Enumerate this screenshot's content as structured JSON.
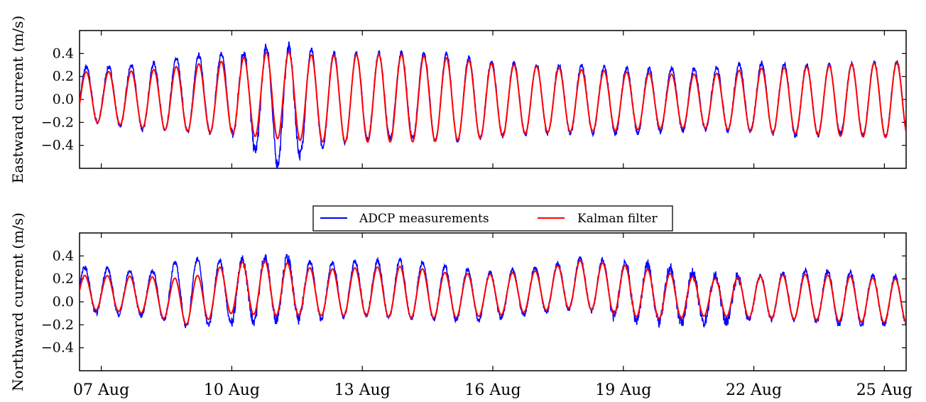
{
  "chart_data": [
    {
      "type": "line",
      "title": "",
      "xlabel": "",
      "ylabel": "Eastward current (m/s)",
      "x_range": [
        "2015-08-06T12:00",
        "2015-08-25T12:00"
      ],
      "ylim": [
        -0.6,
        0.6
      ],
      "yticks": [
        -0.4,
        -0.2,
        0.0,
        0.2,
        0.4
      ],
      "ytick_labels": [
        "−0.4",
        "−0.2",
        "0.0",
        "0.2",
        "0.4"
      ],
      "tide_period_hours": 12.42,
      "series": [
        {
          "name": "ADCP measurements",
          "color": "#0000ff",
          "points": [
            [
              "07 Aug",
              0.28,
              -0.2
            ],
            [
              "08 Aug",
              0.3,
              -0.27
            ],
            [
              "09 Aug",
              0.38,
              -0.28
            ],
            [
              "10 Aug",
              0.4,
              -0.3
            ],
            [
              "11 Aug",
              0.47,
              -0.57
            ],
            [
              "12 Aug",
              0.42,
              -0.42
            ],
            [
              "13 Aug",
              0.4,
              -0.35
            ],
            [
              "14 Aug",
              0.41,
              -0.33
            ],
            [
              "15 Aug",
              0.4,
              -0.38
            ],
            [
              "16 Aug",
              0.33,
              -0.32
            ],
            [
              "17 Aug",
              0.3,
              -0.3
            ],
            [
              "18 Aug",
              0.3,
              -0.3
            ],
            [
              "19 Aug",
              0.27,
              -0.3
            ],
            [
              "20 Aug",
              0.27,
              -0.28
            ],
            [
              "21 Aug",
              0.27,
              -0.26
            ],
            [
              "22 Aug",
              0.32,
              -0.28
            ],
            [
              "23 Aug",
              0.3,
              -0.32
            ],
            [
              "24 Aug",
              0.3,
              -0.3
            ],
            [
              "25 Aug",
              0.33,
              -0.32
            ]
          ]
        },
        {
          "name": "Kalman filter",
          "color": "#ff0000",
          "points": [
            [
              "07 Aug",
              0.24,
              -0.2
            ],
            [
              "08 Aug",
              0.25,
              -0.25
            ],
            [
              "09 Aug",
              0.3,
              -0.28
            ],
            [
              "10 Aug",
              0.34,
              -0.3
            ],
            [
              "11 Aug",
              0.43,
              -0.34
            ],
            [
              "12 Aug",
              0.38,
              -0.37
            ],
            [
              "13 Aug",
              0.39,
              -0.37
            ],
            [
              "14 Aug",
              0.39,
              -0.37
            ],
            [
              "15 Aug",
              0.36,
              -0.36
            ],
            [
              "16 Aug",
              0.31,
              -0.33
            ],
            [
              "17 Aug",
              0.29,
              -0.29
            ],
            [
              "18 Aug",
              0.26,
              -0.28
            ],
            [
              "19 Aug",
              0.24,
              -0.27
            ],
            [
              "20 Aug",
              0.22,
              -0.25
            ],
            [
              "21 Aug",
              0.22,
              -0.25
            ],
            [
              "22 Aug",
              0.27,
              -0.28
            ],
            [
              "23 Aug",
              0.28,
              -0.3
            ],
            [
              "24 Aug",
              0.3,
              -0.32
            ],
            [
              "25 Aug",
              0.32,
              -0.33
            ]
          ]
        }
      ]
    },
    {
      "type": "line",
      "title": "",
      "xlabel": "",
      "ylabel": "Northward current (m/s)",
      "x_range": [
        "2015-08-06T12:00",
        "2015-08-25T12:00"
      ],
      "ylim": [
        -0.6,
        0.6
      ],
      "yticks": [
        -0.4,
        -0.2,
        0.0,
        0.2,
        0.4
      ],
      "ytick_labels": [
        "−0.4",
        "−0.2",
        "0.0",
        "0.2",
        "0.4"
      ],
      "xticks": [
        "2015-08-07",
        "2015-08-10",
        "2015-08-13",
        "2015-08-16",
        "2015-08-19",
        "2015-08-22",
        "2015-08-25"
      ],
      "xtick_labels": [
        "07 Aug",
        "10 Aug",
        "13 Aug",
        "16 Aug",
        "19 Aug",
        "22 Aug",
        "25 Aug"
      ],
      "tide_period_hours": 12.42,
      "series": [
        {
          "name": "ADCP measurements",
          "color": "#0000ff",
          "points": [
            [
              "07 Aug",
              0.3,
              -0.1
            ],
            [
              "08 Aug",
              0.25,
              -0.12
            ],
            [
              "09 Aug",
              0.38,
              -0.22
            ],
            [
              "10 Aug",
              0.35,
              -0.18
            ],
            [
              "11 Aug",
              0.4,
              -0.15
            ],
            [
              "12 Aug",
              0.34,
              -0.15
            ],
            [
              "13 Aug",
              0.35,
              -0.12
            ],
            [
              "14 Aug",
              0.37,
              -0.15
            ],
            [
              "15 Aug",
              0.3,
              -0.16
            ],
            [
              "16 Aug",
              0.25,
              -0.15
            ],
            [
              "17 Aug",
              0.3,
              -0.1
            ],
            [
              "18 Aug",
              0.38,
              -0.05
            ],
            [
              "19 Aug",
              0.35,
              -0.15
            ],
            [
              "20 Aug",
              0.3,
              -0.18
            ],
            [
              "21 Aug",
              0.22,
              -0.18
            ],
            [
              "22 Aug",
              0.22,
              -0.15
            ],
            [
              "23 Aug",
              0.27,
              -0.15
            ],
            [
              "24 Aug",
              0.27,
              -0.2
            ],
            [
              "25 Aug",
              0.22,
              -0.2
            ]
          ]
        },
        {
          "name": "Kalman filter",
          "color": "#ff0000",
          "points": [
            [
              "07 Aug",
              0.23,
              -0.07
            ],
            [
              "08 Aug",
              0.22,
              -0.1
            ],
            [
              "09 Aug",
              0.2,
              -0.2
            ],
            [
              "10 Aug",
              0.34,
              -0.1
            ],
            [
              "11 Aug",
              0.36,
              -0.12
            ],
            [
              "12 Aug",
              0.28,
              -0.12
            ],
            [
              "13 Aug",
              0.3,
              -0.12
            ],
            [
              "14 Aug",
              0.31,
              -0.14
            ],
            [
              "15 Aug",
              0.25,
              -0.14
            ],
            [
              "16 Aug",
              0.24,
              -0.12
            ],
            [
              "17 Aug",
              0.27,
              -0.08
            ],
            [
              "18 Aug",
              0.36,
              -0.05
            ],
            [
              "19 Aug",
              0.32,
              -0.12
            ],
            [
              "20 Aug",
              0.25,
              -0.15
            ],
            [
              "21 Aug",
              0.2,
              -0.12
            ],
            [
              "22 Aug",
              0.22,
              -0.14
            ],
            [
              "23 Aug",
              0.24,
              -0.15
            ],
            [
              "24 Aug",
              0.23,
              -0.17
            ],
            [
              "25 Aug",
              0.2,
              -0.18
            ]
          ]
        }
      ]
    }
  ],
  "legend": {
    "placement": "between-panels-center",
    "entries": [
      {
        "label": "ADCP measurements",
        "color": "#0000ff"
      },
      {
        "label": "Kalman filter",
        "color": "#ff0000"
      }
    ]
  }
}
